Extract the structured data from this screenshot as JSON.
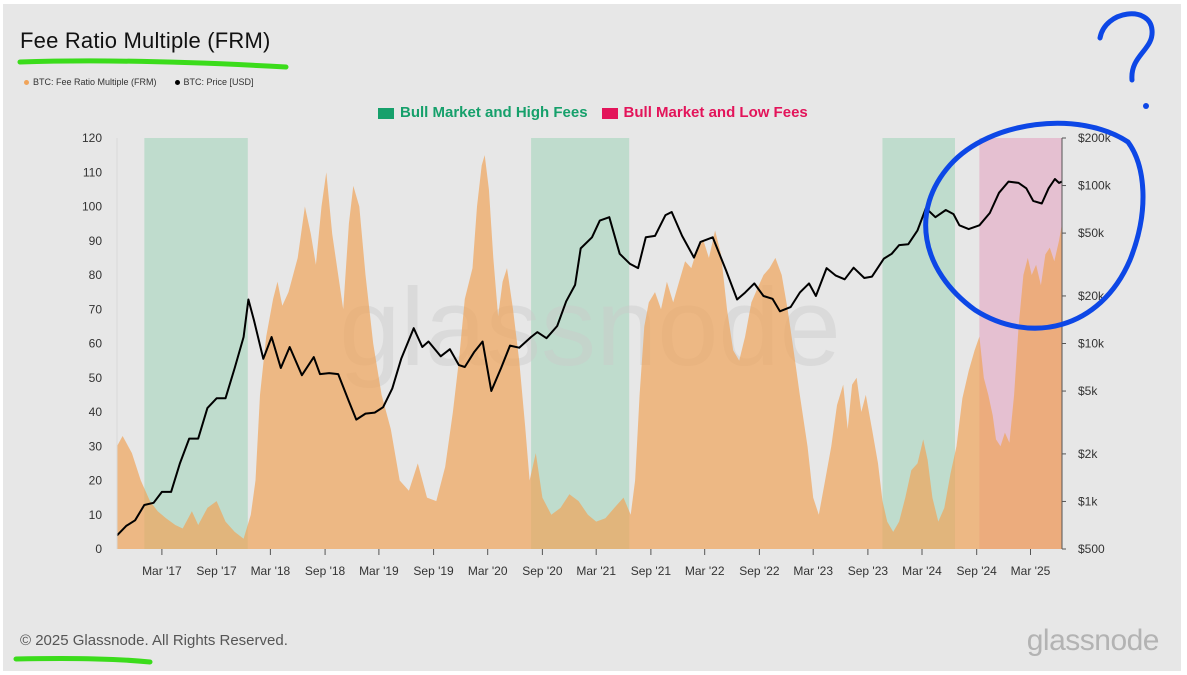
{
  "title": "Fee Ratio Multiple (FRM)",
  "legend": [
    {
      "label": "BTC: Fee Ratio Multiple (FRM)",
      "color": "#f0a45a"
    },
    {
      "label": "BTC: Price [USD]",
      "color": "#000000"
    }
  ],
  "regime_legend": [
    {
      "label": "Bull Market and High Fees",
      "color": "#16a06b"
    },
    {
      "label": "Bull Market and Low Fees",
      "color": "#e3145a"
    }
  ],
  "footer": "© 2025 Glassnode. All Rights Reserved.",
  "brand": "glassnode",
  "watermark": "glassnode",
  "chart_data": {
    "type": "area",
    "title": "Fee Ratio Multiple (FRM)",
    "x_range": [
      "2016-10-01",
      "2025-06-15"
    ],
    "x_ticks": [
      "Mar '17",
      "Sep '17",
      "Mar '18",
      "Sep '18",
      "Mar '19",
      "Sep '19",
      "Mar '20",
      "Sep '20",
      "Mar '21",
      "Sep '21",
      "Mar '22",
      "Sep '22",
      "Mar '23",
      "Sep '23",
      "Mar '24",
      "Sep '24",
      "Mar '25"
    ],
    "y_left": {
      "ticks": [
        0,
        10,
        20,
        30,
        40,
        50,
        60,
        70,
        80,
        90,
        100,
        110,
        120
      ],
      "range": [
        0,
        120
      ]
    },
    "y_right": {
      "scale": "log",
      "ticks": [
        "$500",
        "$1k",
        "$2k",
        "$5k",
        "$10k",
        "$20k",
        "$50k",
        "$100k",
        "$200k"
      ],
      "range": [
        500,
        200000
      ]
    },
    "regions": [
      {
        "start": "2017-01-01",
        "end": "2017-12-15",
        "type": "Bull Market and High Fees",
        "color": "#b7d9c8"
      },
      {
        "start": "2020-07-25",
        "end": "2021-06-20",
        "type": "Bull Market and High Fees",
        "color": "#b7d9c8"
      },
      {
        "start": "2023-10-20",
        "end": "2024-06-20",
        "type": "Bull Market and High Fees",
        "color": "#b7d9c8"
      },
      {
        "start": "2024-09-10",
        "end": "2025-06-15",
        "type": "Bull Market and Low Fees",
        "color": "#e4b9cc"
      }
    ],
    "series": [
      {
        "name": "BTC: Fee Ratio Multiple (FRM)",
        "color": "#f0a45a",
        "points": [
          [
            "2016-10-01",
            30
          ],
          [
            "2016-10-20",
            33
          ],
          [
            "2016-11-20",
            28
          ],
          [
            "2016-12-20",
            20
          ],
          [
            "2017-01-20",
            14
          ],
          [
            "2017-02-15",
            11
          ],
          [
            "2017-03-15",
            9
          ],
          [
            "2017-04-15",
            7
          ],
          [
            "2017-05-10",
            6
          ],
          [
            "2017-06-10",
            11
          ],
          [
            "2017-07-01",
            7
          ],
          [
            "2017-08-01",
            12
          ],
          [
            "2017-09-01",
            14
          ],
          [
            "2017-10-01",
            8
          ],
          [
            "2017-11-01",
            5
          ],
          [
            "2017-12-01",
            3
          ],
          [
            "2017-12-25",
            10
          ],
          [
            "2018-01-10",
            20
          ],
          [
            "2018-01-25",
            45
          ],
          [
            "2018-02-15",
            62
          ],
          [
            "2018-03-10",
            73
          ],
          [
            "2018-03-25",
            78
          ],
          [
            "2018-04-10",
            71
          ],
          [
            "2018-05-01",
            75
          ],
          [
            "2018-06-01",
            85
          ],
          [
            "2018-06-25",
            100
          ],
          [
            "2018-07-15",
            92
          ],
          [
            "2018-08-01",
            83
          ],
          [
            "2018-08-20",
            100
          ],
          [
            "2018-09-05",
            110
          ],
          [
            "2018-09-25",
            92
          ],
          [
            "2018-10-15",
            80
          ],
          [
            "2018-11-01",
            70
          ],
          [
            "2018-11-20",
            95
          ],
          [
            "2018-12-05",
            106
          ],
          [
            "2018-12-25",
            100
          ],
          [
            "2019-01-15",
            80
          ],
          [
            "2019-02-10",
            60
          ],
          [
            "2019-03-10",
            45
          ],
          [
            "2019-04-10",
            35
          ],
          [
            "2019-05-10",
            20
          ],
          [
            "2019-06-10",
            17
          ],
          [
            "2019-07-10",
            25
          ],
          [
            "2019-08-10",
            15
          ],
          [
            "2019-09-10",
            14
          ],
          [
            "2019-10-10",
            24
          ],
          [
            "2019-11-05",
            40
          ],
          [
            "2019-11-25",
            55
          ],
          [
            "2019-12-15",
            73
          ],
          [
            "2020-01-10",
            82
          ],
          [
            "2020-01-25",
            100
          ],
          [
            "2020-02-10",
            112
          ],
          [
            "2020-02-20",
            115
          ],
          [
            "2020-03-05",
            105
          ],
          [
            "2020-03-20",
            85
          ],
          [
            "2020-04-05",
            68
          ],
          [
            "2020-04-20",
            78
          ],
          [
            "2020-05-05",
            82
          ],
          [
            "2020-05-25",
            70
          ],
          [
            "2020-06-15",
            55
          ],
          [
            "2020-07-05",
            36
          ],
          [
            "2020-07-20",
            20
          ],
          [
            "2020-08-10",
            28
          ],
          [
            "2020-09-01",
            15
          ],
          [
            "2020-10-01",
            10
          ],
          [
            "2020-11-01",
            12
          ],
          [
            "2020-12-01",
            16
          ],
          [
            "2021-01-01",
            14
          ],
          [
            "2021-02-01",
            10
          ],
          [
            "2021-03-01",
            8
          ],
          [
            "2021-04-01",
            9
          ],
          [
            "2021-05-01",
            12
          ],
          [
            "2021-06-01",
            15
          ],
          [
            "2021-06-25",
            10
          ],
          [
            "2021-07-10",
            20
          ],
          [
            "2021-07-25",
            45
          ],
          [
            "2021-08-10",
            65
          ],
          [
            "2021-08-25",
            72
          ],
          [
            "2021-09-15",
            75
          ],
          [
            "2021-10-05",
            70
          ],
          [
            "2021-10-25",
            78
          ],
          [
            "2021-11-15",
            72
          ],
          [
            "2021-12-05",
            78
          ],
          [
            "2021-12-25",
            84
          ],
          [
            "2022-01-15",
            82
          ],
          [
            "2022-02-05",
            88
          ],
          [
            "2022-02-25",
            90
          ],
          [
            "2022-03-15",
            85
          ],
          [
            "2022-04-05",
            93
          ],
          [
            "2022-04-25",
            86
          ],
          [
            "2022-05-15",
            70
          ],
          [
            "2022-06-05",
            58
          ],
          [
            "2022-06-25",
            55
          ],
          [
            "2022-07-15",
            62
          ],
          [
            "2022-08-05",
            72
          ],
          [
            "2022-08-25",
            76
          ],
          [
            "2022-09-15",
            80
          ],
          [
            "2022-10-05",
            82
          ],
          [
            "2022-10-25",
            85
          ],
          [
            "2022-11-15",
            80
          ],
          [
            "2022-12-05",
            70
          ],
          [
            "2022-12-25",
            58
          ],
          [
            "2023-01-15",
            45
          ],
          [
            "2023-02-10",
            30
          ],
          [
            "2023-03-01",
            15
          ],
          [
            "2023-03-20",
            10
          ],
          [
            "2023-04-10",
            20
          ],
          [
            "2023-05-01",
            30
          ],
          [
            "2023-05-20",
            42
          ],
          [
            "2023-06-10",
            48
          ],
          [
            "2023-06-25",
            35
          ],
          [
            "2023-07-10",
            48
          ],
          [
            "2023-07-25",
            50
          ],
          [
            "2023-08-10",
            40
          ],
          [
            "2023-08-25",
            45
          ],
          [
            "2023-09-15",
            35
          ],
          [
            "2023-10-05",
            25
          ],
          [
            "2023-10-20",
            14
          ],
          [
            "2023-11-05",
            8
          ],
          [
            "2023-11-25",
            5
          ],
          [
            "2023-12-15",
            8
          ],
          [
            "2024-01-05",
            15
          ],
          [
            "2024-01-25",
            23
          ],
          [
            "2024-02-15",
            25
          ],
          [
            "2024-03-05",
            32
          ],
          [
            "2024-03-20",
            26
          ],
          [
            "2024-04-05",
            15
          ],
          [
            "2024-04-25",
            8
          ],
          [
            "2024-05-15",
            12
          ],
          [
            "2024-06-05",
            22
          ],
          [
            "2024-06-25",
            30
          ],
          [
            "2024-07-15",
            44
          ],
          [
            "2024-08-05",
            52
          ],
          [
            "2024-08-25",
            58
          ],
          [
            "2024-09-10",
            62
          ],
          [
            "2024-09-25",
            50
          ],
          [
            "2024-10-10",
            45
          ],
          [
            "2024-10-25",
            39
          ],
          [
            "2024-11-05",
            32
          ],
          [
            "2024-11-20",
            30
          ],
          [
            "2024-12-05",
            34
          ],
          [
            "2024-12-20",
            31
          ],
          [
            "2025-01-05",
            45
          ],
          [
            "2025-01-20",
            65
          ],
          [
            "2025-02-05",
            80
          ],
          [
            "2025-02-20",
            85
          ],
          [
            "2025-03-05",
            80
          ],
          [
            "2025-03-20",
            83
          ],
          [
            "2025-04-05",
            77
          ],
          [
            "2025-04-20",
            86
          ],
          [
            "2025-05-05",
            88
          ],
          [
            "2025-05-20",
            84
          ],
          [
            "2025-06-05",
            90
          ],
          [
            "2025-06-15",
            95
          ]
        ]
      },
      {
        "name": "BTC: Price [USD]",
        "color": "#000000",
        "points": [
          [
            "2016-10-01",
            610
          ],
          [
            "2016-11-01",
            700
          ],
          [
            "2016-12-01",
            760
          ],
          [
            "2017-01-01",
            950
          ],
          [
            "2017-02-01",
            980
          ],
          [
            "2017-03-01",
            1150
          ],
          [
            "2017-04-01",
            1150
          ],
          [
            "2017-05-01",
            1750
          ],
          [
            "2017-06-01",
            2500
          ],
          [
            "2017-07-01",
            2500
          ],
          [
            "2017-08-01",
            3900
          ],
          [
            "2017-09-01",
            4500
          ],
          [
            "2017-10-01",
            4500
          ],
          [
            "2017-11-01",
            7000
          ],
          [
            "2017-12-01",
            11000
          ],
          [
            "2017-12-17",
            19000
          ],
          [
            "2018-01-05",
            14000
          ],
          [
            "2018-02-05",
            8000
          ],
          [
            "2018-03-05",
            11000
          ],
          [
            "2018-04-05",
            7000
          ],
          [
            "2018-05-05",
            9500
          ],
          [
            "2018-06-15",
            6300
          ],
          [
            "2018-07-25",
            8200
          ],
          [
            "2018-08-15",
            6400
          ],
          [
            "2018-09-15",
            6500
          ],
          [
            "2018-10-15",
            6400
          ],
          [
            "2018-11-20",
            4300
          ],
          [
            "2018-12-15",
            3300
          ],
          [
            "2019-01-15",
            3600
          ],
          [
            "2019-02-15",
            3650
          ],
          [
            "2019-03-15",
            3950
          ],
          [
            "2019-04-15",
            5200
          ],
          [
            "2019-05-15",
            8000
          ],
          [
            "2019-06-26",
            12500
          ],
          [
            "2019-07-25",
            9500
          ],
          [
            "2019-08-15",
            10300
          ],
          [
            "2019-09-25",
            8300
          ],
          [
            "2019-10-26",
            9200
          ],
          [
            "2019-11-25",
            7300
          ],
          [
            "2019-12-15",
            7100
          ],
          [
            "2020-01-15",
            8800
          ],
          [
            "2020-02-13",
            10300
          ],
          [
            "2020-03-13",
            5000
          ],
          [
            "2020-04-15",
            7000
          ],
          [
            "2020-05-15",
            9700
          ],
          [
            "2020-06-15",
            9400
          ],
          [
            "2020-07-25",
            11000
          ],
          [
            "2020-08-15",
            11800
          ],
          [
            "2020-09-15",
            10800
          ],
          [
            "2020-10-21",
            12900
          ],
          [
            "2020-11-20",
            18500
          ],
          [
            "2020-12-20",
            23500
          ],
          [
            "2021-01-08",
            40000
          ],
          [
            "2021-02-15",
            47000
          ],
          [
            "2021-03-13",
            60000
          ],
          [
            "2021-04-14",
            63000
          ],
          [
            "2021-05-19",
            37000
          ],
          [
            "2021-06-22",
            32000
          ],
          [
            "2021-07-20",
            30000
          ],
          [
            "2021-08-15",
            47000
          ],
          [
            "2021-09-15",
            48000
          ],
          [
            "2021-10-20",
            65000
          ],
          [
            "2021-11-10",
            68000
          ],
          [
            "2021-12-15",
            48000
          ],
          [
            "2022-01-24",
            35000
          ],
          [
            "2022-02-15",
            44000
          ],
          [
            "2022-03-28",
            47000
          ],
          [
            "2022-05-12",
            29000
          ],
          [
            "2022-06-18",
            19000
          ],
          [
            "2022-07-15",
            21000
          ],
          [
            "2022-08-15",
            24000
          ],
          [
            "2022-09-15",
            20000
          ],
          [
            "2022-10-15",
            19200
          ],
          [
            "2022-11-09",
            16000
          ],
          [
            "2022-12-15",
            17000
          ],
          [
            "2023-01-15",
            21000
          ],
          [
            "2023-02-15",
            24000
          ],
          [
            "2023-03-10",
            20000
          ],
          [
            "2023-04-15",
            30000
          ],
          [
            "2023-05-15",
            27000
          ],
          [
            "2023-06-15",
            25500
          ],
          [
            "2023-07-15",
            30200
          ],
          [
            "2023-08-20",
            26000
          ],
          [
            "2023-09-15",
            26500
          ],
          [
            "2023-10-25",
            34500
          ],
          [
            "2023-11-20",
            37000
          ],
          [
            "2023-12-15",
            42000
          ],
          [
            "2024-01-15",
            42500
          ],
          [
            "2024-02-15",
            52000
          ],
          [
            "2024-03-14",
            72000
          ],
          [
            "2024-04-15",
            63000
          ],
          [
            "2024-05-20",
            70000
          ],
          [
            "2024-06-15",
            66000
          ],
          [
            "2024-07-05",
            56000
          ],
          [
            "2024-08-05",
            53000
          ],
          [
            "2024-09-10",
            56000
          ],
          [
            "2024-10-15",
            67000
          ],
          [
            "2024-11-15",
            90000
          ],
          [
            "2024-12-17",
            106000
          ],
          [
            "2025-01-20",
            104000
          ],
          [
            "2025-02-15",
            96000
          ],
          [
            "2025-03-10",
            80000
          ],
          [
            "2025-04-08",
            77000
          ],
          [
            "2025-05-01",
            96000
          ],
          [
            "2025-05-22",
            110000
          ],
          [
            "2025-06-05",
            104000
          ],
          [
            "2025-06-15",
            106000
          ]
        ]
      }
    ]
  }
}
